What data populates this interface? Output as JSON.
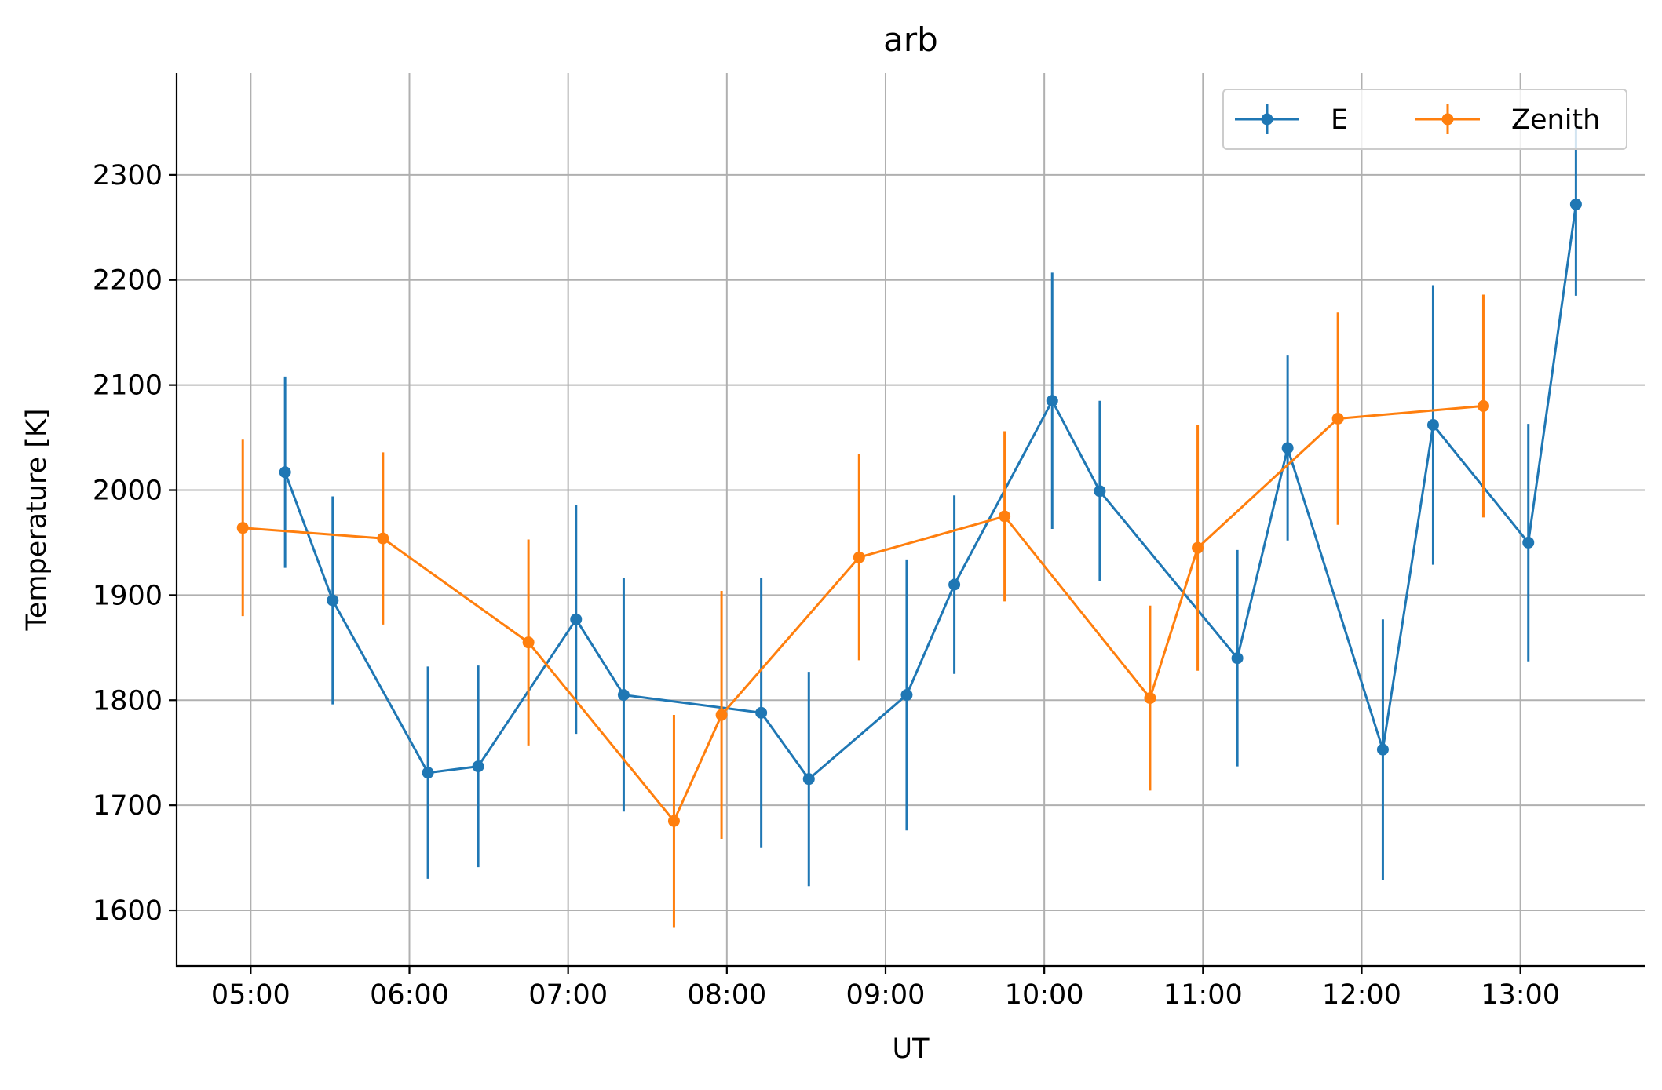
{
  "chart_data": {
    "type": "line",
    "title": "arb",
    "xlabel": "UT",
    "ylabel": "Temperature [K]",
    "x_unit": "hours UT",
    "xlim": [
      "04:32",
      "13:47"
    ],
    "ylim": [
      1547,
      2397
    ],
    "x_ticks": [
      "05:00",
      "06:00",
      "07:00",
      "08:00",
      "09:00",
      "10:00",
      "11:00",
      "12:00",
      "13:00"
    ],
    "y_ticks": [
      1600,
      1700,
      1800,
      1900,
      2000,
      2100,
      2200,
      2300
    ],
    "grid": true,
    "legend_position": "top-right",
    "legend_columns": 2,
    "series": [
      {
        "name": "E",
        "color": "#1f77b4",
        "points": [
          {
            "x": "05:13",
            "y": 2017,
            "err": 91
          },
          {
            "x": "05:31",
            "y": 1895,
            "err": 99
          },
          {
            "x": "06:07",
            "y": 1731,
            "err": 101
          },
          {
            "x": "06:26",
            "y": 1737,
            "err": 96
          },
          {
            "x": "07:03",
            "y": 1877,
            "err": 109
          },
          {
            "x": "07:21",
            "y": 1805,
            "err": 111
          },
          {
            "x": "08:13",
            "y": 1788,
            "err": 128
          },
          {
            "x": "08:31",
            "y": 1725,
            "err": 102
          },
          {
            "x": "09:08",
            "y": 1805,
            "err": 129
          },
          {
            "x": "09:26",
            "y": 1910,
            "err": 85
          },
          {
            "x": "10:03",
            "y": 2085,
            "err": 122
          },
          {
            "x": "10:21",
            "y": 1999,
            "err": 86
          },
          {
            "x": "11:13",
            "y": 1840,
            "err": 103
          },
          {
            "x": "11:32",
            "y": 2040,
            "err": 88
          },
          {
            "x": "12:08",
            "y": 1753,
            "err": 124
          },
          {
            "x": "12:27",
            "y": 2062,
            "err": 133
          },
          {
            "x": "13:03",
            "y": 1950,
            "err": 113
          },
          {
            "x": "13:21",
            "y": 2272,
            "err": 87
          }
        ]
      },
      {
        "name": "Zenith",
        "color": "#ff7f0e",
        "points": [
          {
            "x": "04:57",
            "y": 1964,
            "err": 84
          },
          {
            "x": "05:50",
            "y": 1954,
            "err": 82
          },
          {
            "x": "06:45",
            "y": 1855,
            "err": 98
          },
          {
            "x": "07:40",
            "y": 1685,
            "err": 101
          },
          {
            "x": "07:58",
            "y": 1786,
            "err": 118
          },
          {
            "x": "08:50",
            "y": 1936,
            "err": 98
          },
          {
            "x": "09:45",
            "y": 1975,
            "err": 81
          },
          {
            "x": "10:40",
            "y": 1802,
            "err": 88
          },
          {
            "x": "10:58",
            "y": 1945,
            "err": 117
          },
          {
            "x": "11:51",
            "y": 2068,
            "err": 101
          },
          {
            "x": "12:46",
            "y": 2080,
            "err": 106
          }
        ]
      }
    ]
  }
}
